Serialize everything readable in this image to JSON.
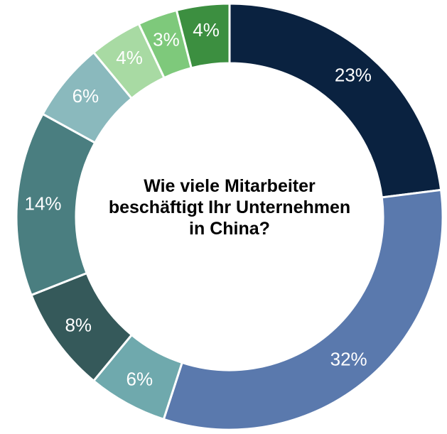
{
  "chart_data": {
    "type": "donut",
    "title": "Wie viele Mitarbeiter\nbeschäftigt Ihr Unternehmen\nin China?",
    "values": [
      23,
      32,
      6,
      8,
      14,
      6,
      4,
      3,
      4
    ],
    "value_labels": [
      "23%",
      "32%",
      "6%",
      "8%",
      "14%",
      "6%",
      "4%",
      "3%",
      "4%"
    ],
    "colors": [
      "#0a2240",
      "#5a79ad",
      "#6fa9ad",
      "#35595a",
      "#4a7e80",
      "#8ab9bd",
      "#a8daa3",
      "#7ec97b",
      "#3c8f40"
    ]
  }
}
